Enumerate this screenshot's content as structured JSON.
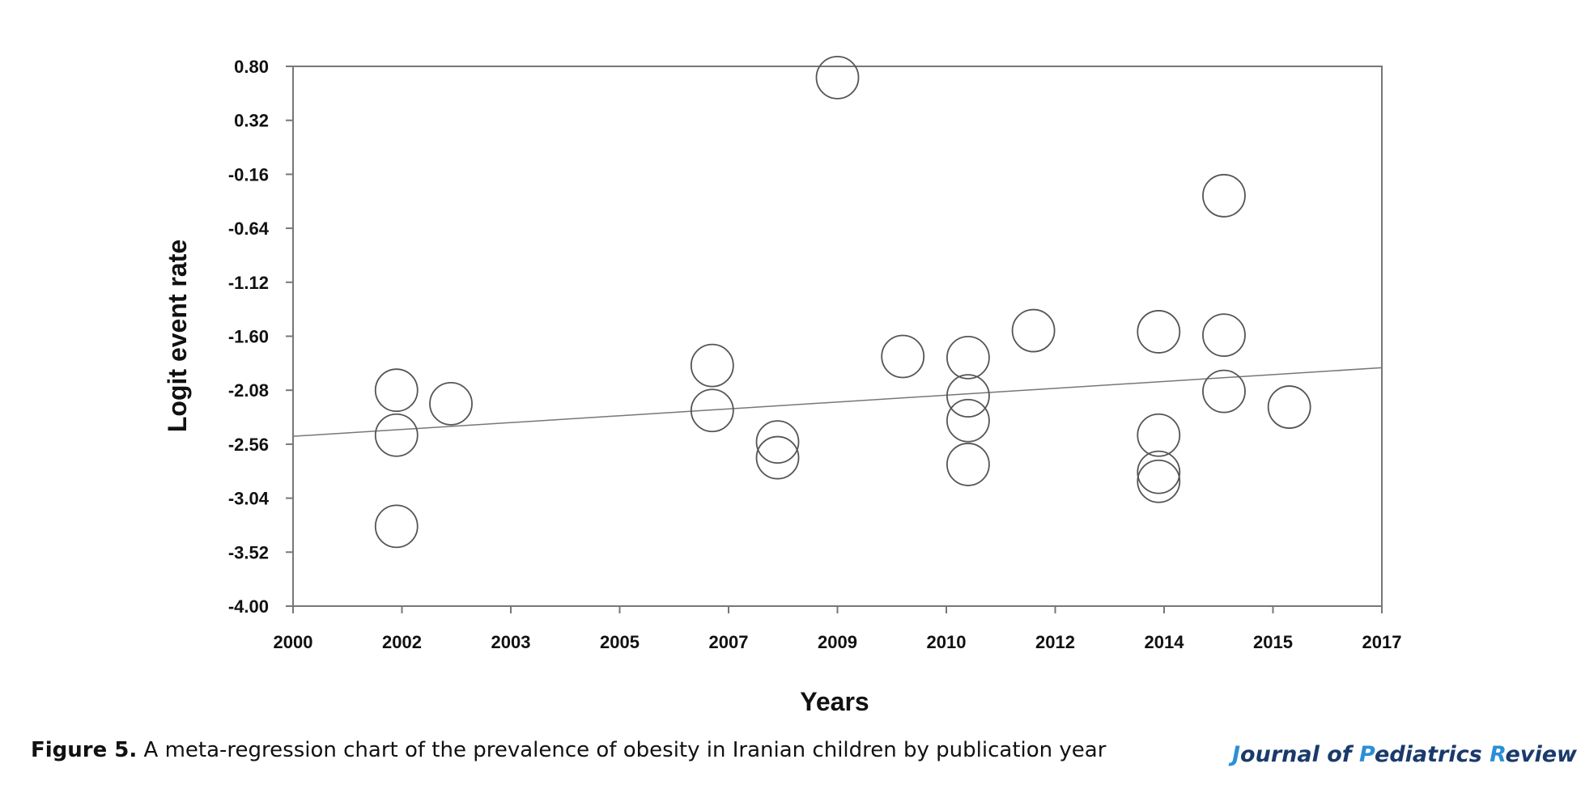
{
  "chart_data": {
    "type": "scatter",
    "title": "",
    "xlabel": "Years",
    "ylabel": "Logit event rate",
    "x_tick_labels": [
      "2000",
      "2002",
      "2003",
      "2005",
      "2007",
      "2009",
      "2010",
      "2012",
      "2014",
      "2015",
      "2017"
    ],
    "x_tick_positions": [
      0,
      1,
      2,
      3,
      4,
      5,
      6,
      7,
      8,
      9,
      10
    ],
    "y_tick_labels": [
      "0.80",
      "0.32",
      "-0.16",
      "-0.64",
      "-1.12",
      "-1.60",
      "-2.08",
      "-2.56",
      "-3.04",
      "-3.52",
      "-4.00"
    ],
    "xlim": [
      0,
      10
    ],
    "ylim": [
      -4.0,
      0.8
    ],
    "grid": false,
    "points": [
      {
        "x": 0.95,
        "y": -2.08
      },
      {
        "x": 0.95,
        "y": -2.48
      },
      {
        "x": 0.95,
        "y": -3.29
      },
      {
        "x": 1.45,
        "y": -2.2
      },
      {
        "x": 3.85,
        "y": -1.86
      },
      {
        "x": 3.85,
        "y": -2.26
      },
      {
        "x": 4.45,
        "y": -2.54
      },
      {
        "x": 4.45,
        "y": -2.68
      },
      {
        "x": 5.0,
        "y": 0.7
      },
      {
        "x": 5.6,
        "y": -1.78
      },
      {
        "x": 6.2,
        "y": -1.79
      },
      {
        "x": 6.2,
        "y": -2.13
      },
      {
        "x": 6.2,
        "y": -2.35
      },
      {
        "x": 6.2,
        "y": -2.74
      },
      {
        "x": 6.8,
        "y": -1.55
      },
      {
        "x": 7.95,
        "y": -1.56
      },
      {
        "x": 7.95,
        "y": -2.48
      },
      {
        "x": 7.95,
        "y": -2.81
      },
      {
        "x": 7.95,
        "y": -2.89
      },
      {
        "x": 8.55,
        "y": -0.35
      },
      {
        "x": 8.55,
        "y": -1.59
      },
      {
        "x": 8.55,
        "y": -2.09
      },
      {
        "x": 9.15,
        "y": -2.23
      }
    ],
    "regression_line": {
      "x": [
        0,
        10
      ],
      "y": [
        -2.49,
        -1.88
      ]
    },
    "marker": {
      "shape": "circle",
      "fill": "none",
      "stroke": "#555555"
    },
    "line_color": "#777777",
    "frame_color": "#777777"
  },
  "caption": {
    "lead": "Figure 5.",
    "text": " A meta-regression chart of the prevalence of obesity in Iranian children by publication year"
  },
  "journal": {
    "part1": "J",
    "part2": "ournal of ",
    "part3": "P",
    "part4": "ediatrics ",
    "part5": "R",
    "part6": "eview"
  }
}
